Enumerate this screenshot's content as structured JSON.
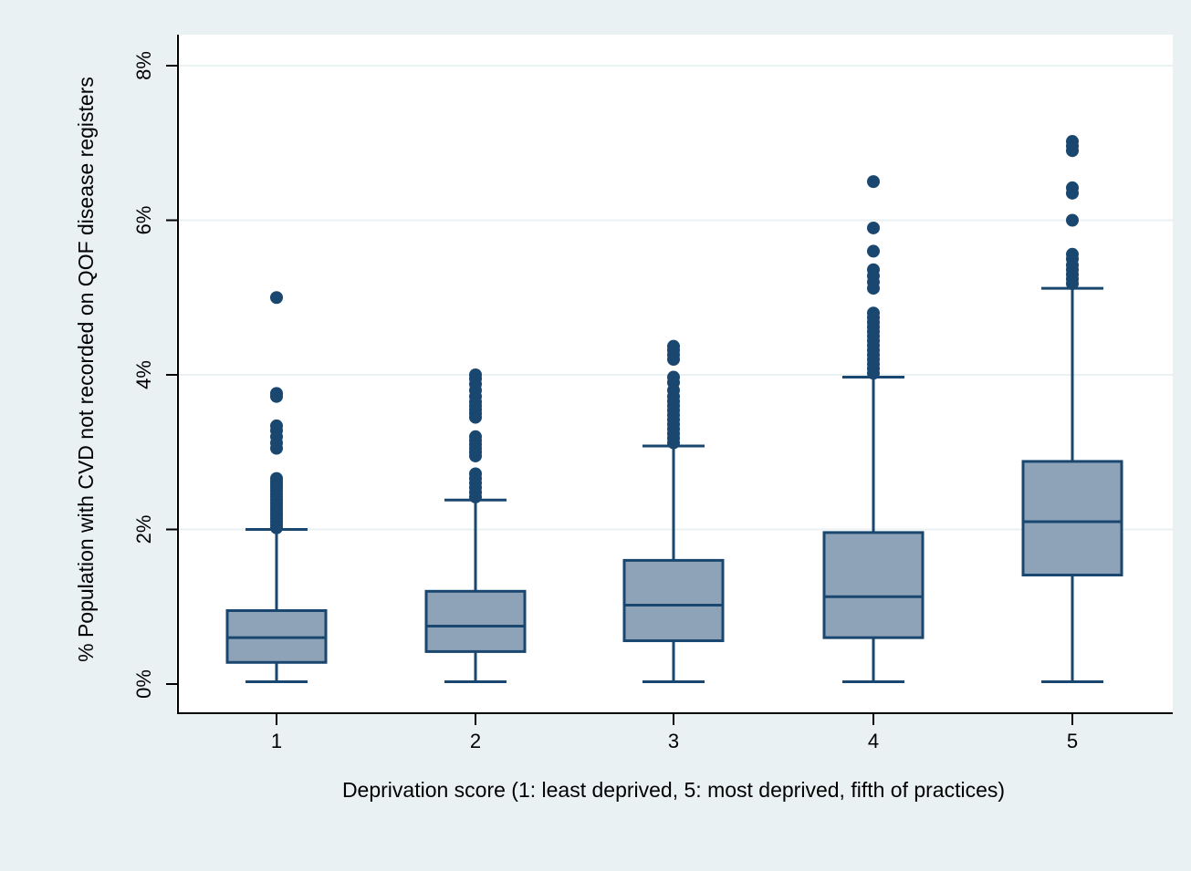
{
  "chart_data": {
    "type": "boxplot",
    "xlabel": "Deprivation score (1: least deprived, 5: most deprived, fifth of practices)",
    "ylabel": "% Population with CVD not recorded on QOF disease registers",
    "ylim": [
      0,
      8
    ],
    "yticks": [
      0,
      2,
      4,
      6,
      8
    ],
    "ytick_labels": [
      "0%",
      "2%",
      "4%",
      "6%",
      "8%"
    ],
    "grid": true,
    "legend": "none",
    "colors": {
      "box_fill": "#8fa3b8",
      "box_line": "#1a476f",
      "outlier": "#1a476f",
      "plot_background": "#ffffff",
      "outer_background": "#eaf1f3",
      "grid": "#eaf1f3"
    },
    "categories": [
      "1",
      "2",
      "3",
      "4",
      "5"
    ],
    "boxes": [
      {
        "category": "1",
        "whisker_low": 0.03,
        "q1": 0.28,
        "median": 0.6,
        "q3": 0.95,
        "whisker_high": 2.0,
        "outliers": [
          2.02,
          2.06,
          2.1,
          2.14,
          2.18,
          2.22,
          2.26,
          2.3,
          2.34,
          2.38,
          2.42,
          2.46,
          2.5,
          2.54,
          2.58,
          2.62,
          2.66,
          3.05,
          3.12,
          3.2,
          3.28,
          3.34,
          3.72,
          3.76,
          5.0
        ]
      },
      {
        "category": "2",
        "whisker_low": 0.03,
        "q1": 0.42,
        "median": 0.75,
        "q3": 1.2,
        "whisker_high": 2.38,
        "outliers": [
          2.42,
          2.48,
          2.54,
          2.6,
          2.66,
          2.72,
          2.95,
          3.0,
          3.05,
          3.1,
          3.15,
          3.2,
          3.45,
          3.5,
          3.55,
          3.6,
          3.65,
          3.72,
          3.8,
          3.88,
          3.95,
          4.0
        ]
      },
      {
        "category": "3",
        "whisker_low": 0.03,
        "q1": 0.56,
        "median": 1.02,
        "q3": 1.6,
        "whisker_high": 3.08,
        "outliers": [
          3.12,
          3.18,
          3.24,
          3.3,
          3.36,
          3.42,
          3.48,
          3.54,
          3.6,
          3.66,
          3.72,
          3.8,
          3.9,
          3.97,
          4.2,
          4.26,
          4.32,
          4.37
        ]
      },
      {
        "category": "4",
        "whisker_low": 0.03,
        "q1": 0.6,
        "median": 1.13,
        "q3": 1.96,
        "whisker_high": 3.97,
        "outliers": [
          4.02,
          4.08,
          4.14,
          4.2,
          4.26,
          4.32,
          4.38,
          4.44,
          4.5,
          4.56,
          4.62,
          4.68,
          4.74,
          4.8,
          5.12,
          5.2,
          5.28,
          5.36,
          5.6,
          5.9,
          6.5
        ]
      },
      {
        "category": "5",
        "whisker_low": 0.03,
        "q1": 1.41,
        "median": 2.1,
        "q3": 2.88,
        "whisker_high": 5.12,
        "outliers": [
          5.18,
          5.24,
          5.3,
          5.36,
          5.42,
          5.5,
          5.56,
          6.0,
          6.35,
          6.42,
          6.9,
          6.96,
          7.02
        ]
      }
    ]
  }
}
